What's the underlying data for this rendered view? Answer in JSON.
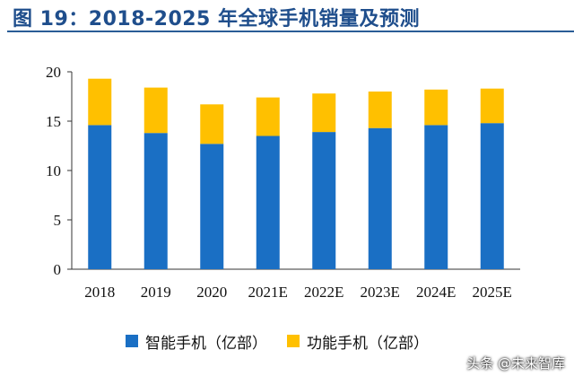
{
  "title": "图 19：2018-2025 年全球手机销量及预测",
  "watermark": "头条 @未来智库",
  "colors": {
    "title": "#1f4e8c",
    "smart": "#1a6fc4",
    "feature": "#ffc000"
  },
  "chart_data": {
    "type": "bar",
    "stacked": true,
    "categories": [
      "2018",
      "2019",
      "2020",
      "2021E",
      "2022E",
      "2023E",
      "2024E",
      "2025E"
    ],
    "series": [
      {
        "name": "智能手机（亿部）",
        "color": "#1a6fc4",
        "values": [
          14.6,
          13.8,
          12.7,
          13.5,
          13.9,
          14.3,
          14.6,
          14.8
        ]
      },
      {
        "name": "功能手机（亿部）",
        "color": "#ffc000",
        "values": [
          4.7,
          4.6,
          4.0,
          3.9,
          3.9,
          3.7,
          3.6,
          3.5
        ]
      }
    ],
    "ylim": [
      0,
      20
    ],
    "yticks": [
      0,
      5,
      10,
      15,
      20
    ],
    "xlabel": "",
    "ylabel": "",
    "grid": false,
    "legend": "bottom"
  }
}
